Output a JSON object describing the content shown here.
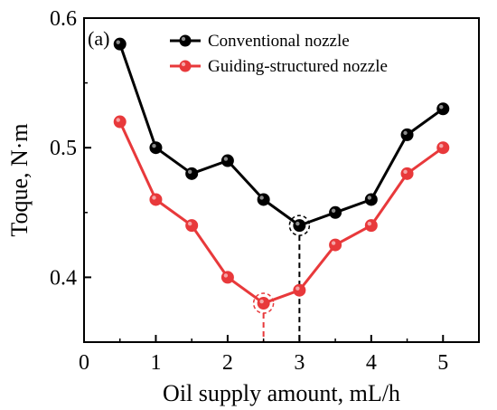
{
  "chart_data": {
    "type": "line",
    "panel_label": "(a)",
    "xlabel": "Oil supply amount, mL/h",
    "ylabel": "Toque, N·m",
    "xlim": [
      0,
      5.5
    ],
    "ylim": [
      0.35,
      0.6
    ],
    "xticks": [
      0,
      1,
      2,
      3,
      4,
      5
    ],
    "yticks": [
      0.4,
      0.5,
      0.6
    ],
    "x": [
      0.5,
      1,
      1.5,
      2,
      2.5,
      3,
      3.5,
      4,
      4.5,
      5
    ],
    "series": [
      {
        "name": "Conventional nozzle",
        "color": "#000000",
        "values": [
          0.58,
          0.5,
          0.48,
          0.49,
          0.46,
          0.44,
          0.45,
          0.46,
          0.51,
          0.53
        ]
      },
      {
        "name": "Guiding-structured nozzle",
        "color": "#e8393b",
        "values": [
          0.52,
          0.46,
          0.44,
          0.4,
          0.38,
          0.39,
          0.425,
          0.44,
          0.48,
          0.5
        ]
      }
    ],
    "annotations": [
      {
        "type": "min-marker",
        "series": 0,
        "x": 3,
        "y": 0.44,
        "color": "#000000"
      },
      {
        "type": "min-marker",
        "series": 1,
        "x": 2.5,
        "y": 0.38,
        "color": "#e8393b"
      }
    ],
    "legend_position": "top-right",
    "grid": false
  }
}
